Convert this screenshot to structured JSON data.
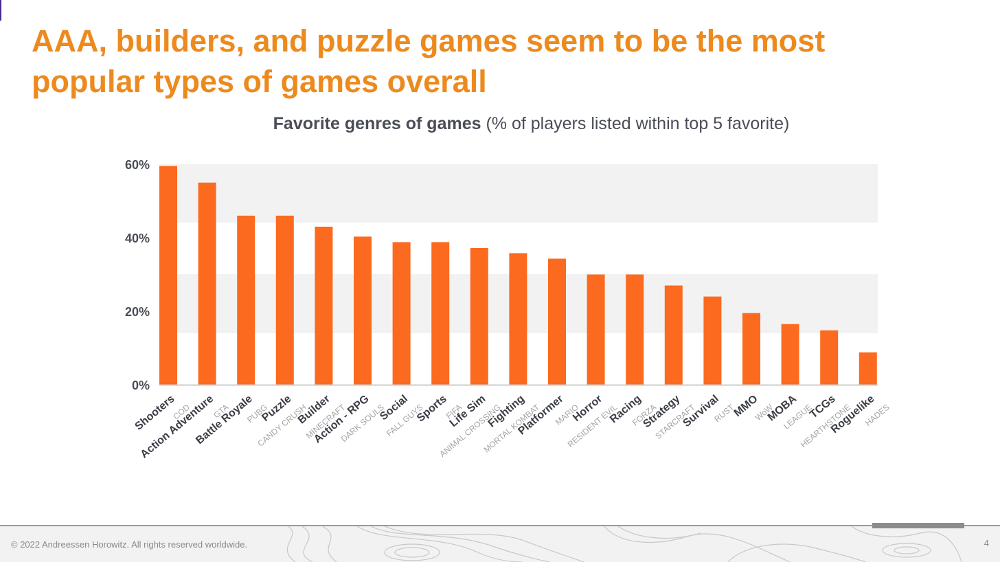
{
  "slide": {
    "title": "AAA, builders, and puzzle games seem to be the most popular types of games overall",
    "footer": "© 2022 Andreessen Horowitz. All rights reserved worldwide.",
    "page_number": "4"
  },
  "chart_data": {
    "type": "bar",
    "title": "Favorite genres of games",
    "subtitle": "(% of players listed within top 5 favorite)",
    "xlabel": "",
    "ylabel": "",
    "ylim": [
      0,
      60
    ],
    "yticks": [
      "60%",
      "40%",
      "20%",
      "0%"
    ],
    "bar_color": "#fb6a1f",
    "categories": [
      {
        "genre": "Shooters",
        "example": "COD"
      },
      {
        "genre": "Action Adventure",
        "example": "GTA"
      },
      {
        "genre": "Battle Royale",
        "example": "PUBG"
      },
      {
        "genre": "Puzzle",
        "example": "CANDY CRUSH"
      },
      {
        "genre": "Builder",
        "example": "MINECRAFT"
      },
      {
        "genre": "Action - RPG",
        "example": "DARK SOULS"
      },
      {
        "genre": "Social",
        "example": "FALL GUYS"
      },
      {
        "genre": "Sports",
        "example": "FIFA"
      },
      {
        "genre": "Life Sim",
        "example": "ANIMAL CROSSING"
      },
      {
        "genre": "Fighting",
        "example": "MORTAL KOMBAT"
      },
      {
        "genre": "Platformer",
        "example": "MARIO"
      },
      {
        "genre": "Horror",
        "example": "RESIDENT EVIL"
      },
      {
        "genre": "Racing",
        "example": "FORZA"
      },
      {
        "genre": "Strategy",
        "example": "STARCRAFT"
      },
      {
        "genre": "Survival",
        "example": "RUST"
      },
      {
        "genre": "MMO",
        "example": "WoW"
      },
      {
        "genre": "MOBA",
        "example": "LEAGUE"
      },
      {
        "genre": "TCGs",
        "example": "HEARTHSTONE"
      },
      {
        "genre": "Roguelike",
        "example": "HADES"
      }
    ],
    "values": [
      59.5,
      55,
      46,
      46,
      43,
      40.3,
      38.8,
      38.8,
      37.2,
      35.8,
      34.3,
      30,
      30,
      27,
      24,
      19.5,
      16.5,
      14.8,
      8.8
    ]
  }
}
